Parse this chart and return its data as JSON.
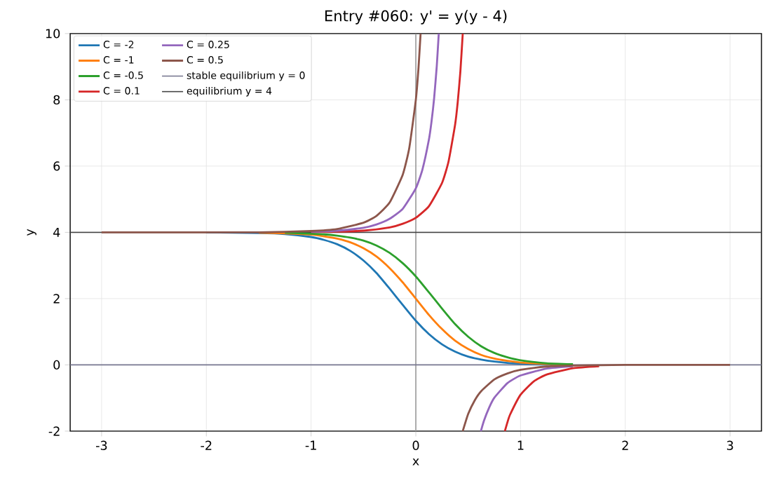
{
  "chart_data": {
    "type": "line",
    "title": "Entry #060: y' = y(y - 4)",
    "xlabel": "x",
    "ylabel": "y",
    "xlim": [
      -3.3,
      3.3
    ],
    "ylim": [
      -2,
      10
    ],
    "xticks": [
      -3,
      -2,
      -1,
      0,
      1,
      2,
      3
    ],
    "yticks": [
      -2,
      0,
      2,
      4,
      6,
      8,
      10
    ],
    "grid": true,
    "legend": "top left",
    "line_style": "solid",
    "marker": "none",
    "series": [
      {
        "name": "C = -2",
        "color": "#1f77b4",
        "x": [
          -2,
          -1.5,
          -1.25,
          -1,
          -0.875,
          -0.75,
          -0.625,
          -0.5,
          -0.375,
          -0.25,
          -0.125,
          0,
          0.125,
          0.25,
          0.375,
          0.5,
          0.625,
          0.75,
          0.875,
          1,
          1.25,
          1.5
        ],
        "values": [
          4.0,
          3.98,
          3.95,
          3.86,
          3.77,
          3.64,
          3.44,
          3.15,
          2.77,
          2.3,
          1.81,
          1.33,
          0.93,
          0.62,
          0.4,
          0.25,
          0.16,
          0.1,
          0.06,
          0.04,
          0.01,
          0.0
        ]
      },
      {
        "name": "C = -1",
        "color": "#ff7f0e",
        "x": [
          -1.5,
          -1.25,
          -1,
          -0.875,
          -0.75,
          -0.625,
          -0.5,
          -0.375,
          -0.25,
          -0.125,
          0,
          0.125,
          0.25,
          0.375,
          0.5,
          0.625,
          0.75,
          0.875,
          1,
          1.25,
          1.5
        ],
        "values": [
          3.99,
          3.97,
          3.93,
          3.88,
          3.81,
          3.7,
          3.52,
          3.27,
          2.92,
          2.49,
          2.0,
          1.51,
          1.08,
          0.73,
          0.48,
          0.3,
          0.19,
          0.12,
          0.07,
          0.03,
          0.01
        ]
      },
      {
        "name": "C = -0.5",
        "color": "#2ca02c",
        "x": [
          -1.25,
          -1,
          -0.875,
          -0.75,
          -0.625,
          -0.5,
          -0.375,
          -0.25,
          -0.125,
          0,
          0.125,
          0.25,
          0.375,
          0.5,
          0.625,
          0.75,
          0.875,
          1,
          1.25,
          1.5
        ],
        "values": [
          3.99,
          3.96,
          3.94,
          3.9,
          3.84,
          3.75,
          3.6,
          3.38,
          3.07,
          2.67,
          2.19,
          1.7,
          1.23,
          0.85,
          0.56,
          0.36,
          0.23,
          0.14,
          0.05,
          0.02
        ]
      },
      {
        "name": "C = 0.1",
        "color": "#d62728",
        "x": [
          -1,
          -0.75,
          -0.5,
          -0.25,
          -0.125,
          0,
          0.125,
          0.25,
          0.3125,
          0.375,
          0.4,
          0.425,
          0.448,
          null,
          0.85,
          0.875,
          0.9,
          1,
          1.125,
          1.25,
          1.5,
          1.75
        ],
        "values": [
          4.01,
          4.02,
          4.05,
          4.15,
          4.26,
          4.44,
          4.79,
          5.49,
          6.14,
          7.25,
          7.93,
          8.84,
          10.0,
          null,
          -2.0,
          -1.73,
          -1.5,
          -0.9,
          -0.5,
          -0.29,
          -0.1,
          -0.04
        ]
      },
      {
        "name": "C = 0.25",
        "color": "#9467bd",
        "x": [
          -1,
          -0.75,
          -0.5,
          -0.375,
          -0.25,
          -0.125,
          0,
          0.0625,
          0.125,
          0.15,
          0.175,
          0.2,
          0.219,
          null,
          0.621,
          0.65,
          0.7,
          0.75,
          0.875,
          1,
          1.25,
          1.5
        ],
        "values": [
          4.02,
          4.05,
          4.14,
          4.24,
          4.41,
          4.71,
          5.33,
          5.89,
          6.8,
          7.35,
          8.06,
          9.02,
          10.0,
          null,
          -2.0,
          -1.69,
          -1.29,
          -0.99,
          -0.55,
          -0.32,
          -0.11,
          -0.04
        ]
      },
      {
        "name": "C = 0.5",
        "color": "#8c564b",
        "x": [
          -3,
          -2,
          -1.5,
          -1,
          -0.75,
          -0.5,
          -0.375,
          -0.25,
          -0.125,
          -0.0625,
          0,
          0.025,
          0.0456,
          null,
          0.448,
          0.5,
          0.5625,
          0.625,
          0.75,
          0.875,
          1,
          1.25,
          1.5,
          2,
          2.5,
          3
        ],
        "values": [
          4.0,
          4.0,
          4.0,
          4.04,
          4.1,
          4.29,
          4.5,
          4.9,
          5.74,
          6.55,
          8.0,
          8.94,
          10.0,
          null,
          -2.0,
          -1.48,
          -1.07,
          -0.79,
          -0.44,
          -0.26,
          -0.15,
          -0.05,
          -0.02,
          0.0,
          0.0,
          0.0
        ]
      }
    ],
    "ref_lines": [
      {
        "axis": "x",
        "value": 0,
        "color": "#999999"
      },
      {
        "axis": "y",
        "value": 0,
        "label": "stable equilibrium y = 0",
        "color": "#777790"
      },
      {
        "axis": "y",
        "value": 4,
        "label": "equilibrium y = 4",
        "color": "#444444"
      }
    ]
  }
}
